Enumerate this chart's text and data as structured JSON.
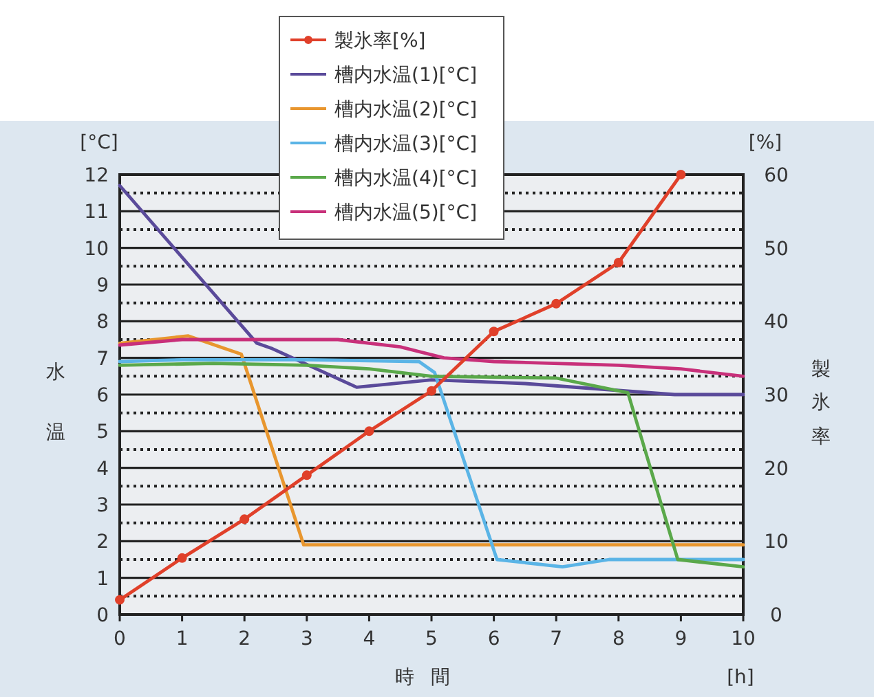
{
  "chart_data": {
    "type": "line",
    "xlabel": "時間",
    "ylabel": "水温",
    "y2label": "製氷率",
    "annotations": [
      "[°C]",
      "[%]",
      "[h]"
    ],
    "xlim": [
      0,
      10
    ],
    "xticks": [
      0,
      1,
      2,
      3,
      4,
      5,
      6,
      7,
      8,
      9,
      10
    ],
    "ylim": [
      0,
      12
    ],
    "yticks": [
      0,
      {
        "value": 0.5,
        "label": null
      },
      1,
      {
        "value": 1.5,
        "label": null
      },
      2,
      {
        "value": 2.5,
        "label": null
      },
      3,
      {
        "value": 3.5,
        "label": null
      },
      4,
      {
        "value": 4.5,
        "label": null
      },
      5,
      {
        "value": 5.5,
        "label": null
      },
      6,
      {
        "value": 6.5,
        "label": null
      },
      7,
      {
        "value": 7.5,
        "label": null
      },
      8,
      {
        "value": 8.5,
        "label": null
      },
      9,
      {
        "value": 9.5,
        "label": null
      },
      10,
      {
        "value": 10.5,
        "label": null
      },
      11,
      {
        "value": 11.5,
        "label": null
      },
      12
    ],
    "y2lim": [
      0,
      60
    ],
    "y2ticks": [
      0,
      10,
      20,
      30,
      40,
      50,
      60
    ],
    "grid": "y",
    "legend": "top",
    "line_style": "solid",
    "series": [
      {
        "name": "製氷率[%]",
        "color": "#e0402a",
        "axis": "y2",
        "marker": "circle",
        "x": [
          0,
          1,
          2,
          3,
          4,
          5,
          6,
          7,
          8,
          9
        ],
        "values": [
          2,
          7.7,
          13,
          19,
          25,
          30.5,
          38.6,
          42.4,
          48,
          60
        ]
      },
      {
        "name": "槽内水温(1)[°C]",
        "color": "#5a4a9a",
        "x": [
          0,
          2.2,
          2.45,
          3.8,
          5,
          5.8,
          6.5,
          8.9,
          10
        ],
        "values": [
          11.7,
          7.4,
          7.25,
          6.2,
          6.4,
          6.35,
          6.3,
          6.0,
          6.0
        ]
      },
      {
        "name": "槽内水温(2)[°C]",
        "color": "#e8962e",
        "x": [
          0,
          1.1,
          1.95,
          2.95,
          10
        ],
        "values": [
          7.4,
          7.6,
          7.1,
          1.9,
          1.9
        ]
      },
      {
        "name": "槽内水温(3)[°C]",
        "color": "#5ab4e6",
        "x": [
          0,
          1,
          3,
          4.8,
          5.05,
          6.05,
          7.1,
          7.85,
          10
        ],
        "values": [
          6.9,
          6.95,
          6.95,
          6.9,
          6.6,
          1.5,
          1.3,
          1.5,
          1.5
        ]
      },
      {
        "name": "槽内水温(4)[°C]",
        "color": "#5aa84a",
        "x": [
          0,
          1.5,
          3,
          4,
          5,
          7,
          8.15,
          8.95,
          10
        ],
        "values": [
          6.8,
          6.85,
          6.8,
          6.7,
          6.5,
          6.45,
          6.05,
          1.5,
          1.3
        ]
      },
      {
        "name": "槽内水温(5)[°C]",
        "color": "#c8307a",
        "x": [
          0,
          1,
          3.5,
          4.5,
          5.2,
          6,
          8,
          9,
          10
        ],
        "values": [
          7.35,
          7.5,
          7.5,
          7.3,
          7.0,
          6.9,
          6.8,
          6.7,
          6.5
        ]
      }
    ]
  }
}
